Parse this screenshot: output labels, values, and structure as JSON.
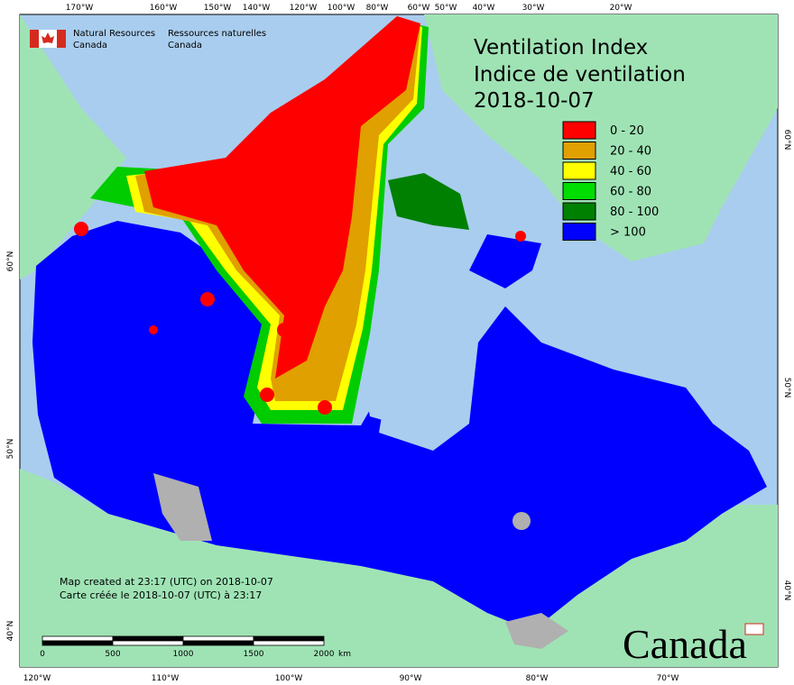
{
  "header": {
    "agency_en": [
      "Natural Resources",
      "Canada"
    ],
    "agency_fr": [
      "Ressources naturelles",
      "Canada"
    ]
  },
  "title": [
    "Ventilation Index",
    "Indice de ventilation",
    "2018-10-07"
  ],
  "legend": [
    {
      "label": "0 - 20",
      "color": "#ff0000"
    },
    {
      "label": "20 - 40",
      "color": "#e0a000"
    },
    {
      "label": "40 - 60",
      "color": "#ffff00"
    },
    {
      "label": "60 - 80",
      "color": "#00dd00"
    },
    {
      "label": "80 - 100",
      "color": "#008000"
    },
    {
      "label": "> 100",
      "color": "#0000ff"
    }
  ],
  "graticule": {
    "top": [
      "170°W",
      "160°W",
      "150°W",
      "140°W",
      "120°W",
      "100°W",
      "80°W",
      "60°W",
      "50°W",
      "40°W",
      "30°W",
      "20°W"
    ],
    "bottom": [
      "120°W",
      "110°W",
      "100°W",
      "90°W",
      "80°W",
      "70°W"
    ],
    "left": [
      "60°N",
      "50°N",
      "40°N"
    ],
    "right": [
      "60°N",
      "50°N",
      "40°N"
    ]
  },
  "scale_bar": {
    "ticks": [
      "0",
      "500",
      "1000",
      "1500",
      "2000"
    ],
    "unit": "km"
  },
  "notes": [
    "Map created at 23:17 (UTC) on 2018-10-07",
    "Carte créée le 2018-10-07 (UTC) à 23:17"
  ],
  "wordmark": "Canada"
}
